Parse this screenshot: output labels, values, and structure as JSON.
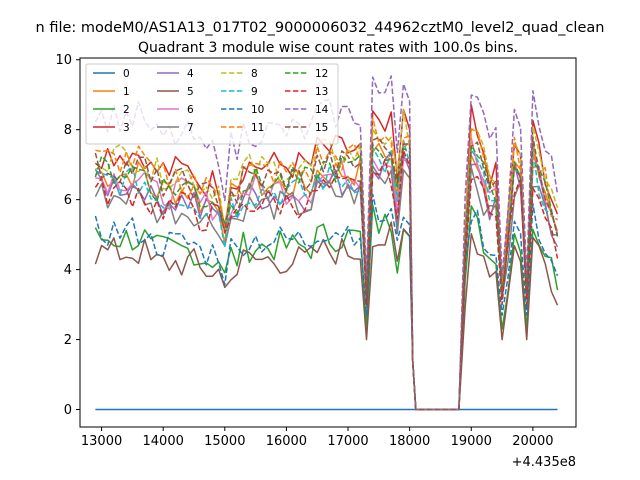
{
  "figure": {
    "suptitle": "n file: modeM0/AS1A13_017T02_9000006032_44962cztM0_level2_quad_clean",
    "title": "Quadrant 3 module wise count rates with 100.0s bins."
  },
  "chart_data": {
    "type": "line",
    "title": "Quadrant 3 module wise count rates with 100.0s bins.",
    "xlabel": "",
    "ylabel": "",
    "x_offset_label": "+4.435e8",
    "xlim": [
      12650,
      20700
    ],
    "ylim": [
      -0.5,
      10.05
    ],
    "xticks": [
      13000,
      14000,
      15000,
      16000,
      17000,
      18000,
      19000,
      20000
    ],
    "xtick_labels": [
      "13000",
      "14000",
      "15000",
      "16000",
      "17000",
      "18000",
      "19000",
      "20000"
    ],
    "yticks": [
      0,
      2,
      4,
      6,
      8,
      10
    ],
    "ytick_labels": [
      "0",
      "2",
      "4",
      "6",
      "8",
      "10"
    ],
    "grid": false,
    "legend": {
      "placement": "top-left",
      "columns": 4
    },
    "x_range": [
      12900,
      20400
    ],
    "bin_width": 100,
    "gap": [
      18100,
      18800
    ],
    "series": [
      {
        "name": "0",
        "color": "#1f77b4",
        "dashed": false,
        "level": 0.0,
        "dip": 0.0
      },
      {
        "name": "1",
        "color": "#ff7f0e",
        "dashed": false,
        "level": 6.6,
        "dip": 3.5
      },
      {
        "name": "2",
        "color": "#2ca02c",
        "dashed": false,
        "level": 4.8,
        "dip": 2.3
      },
      {
        "name": "3",
        "color": "#d62728",
        "dashed": false,
        "level": 7.2,
        "dip": 3.3
      },
      {
        "name": "4",
        "color": "#9467bd",
        "dashed": false,
        "level": 6.3,
        "dip": 3.4
      },
      {
        "name": "5",
        "color": "#8c564b",
        "dashed": false,
        "level": 4.4,
        "dip": 2.0
      },
      {
        "name": "6",
        "color": "#e377c2",
        "dashed": false,
        "level": 6.5,
        "dip": 3.3
      },
      {
        "name": "7",
        "color": "#7f7f7f",
        "dashed": false,
        "level": 6.0,
        "dip": 3.2
      },
      {
        "name": "8",
        "color": "#bcbd22",
        "dashed": true,
        "level": 7.1,
        "dip": 3.6
      },
      {
        "name": "9",
        "color": "#17becf",
        "dashed": true,
        "level": 6.4,
        "dip": 3.2
      },
      {
        "name": "10",
        "color": "#1f77b4",
        "dashed": true,
        "level": 5.0,
        "dip": 2.7
      },
      {
        "name": "11",
        "color": "#ff7f0e",
        "dashed": true,
        "level": 7.0,
        "dip": 3.5
      },
      {
        "name": "12",
        "color": "#2ca02c",
        "dashed": true,
        "level": 6.7,
        "dip": 3.3
      },
      {
        "name": "13",
        "color": "#d62728",
        "dashed": true,
        "level": 6.1,
        "dip": 3.0
      },
      {
        "name": "14",
        "color": "#9467bd",
        "dashed": true,
        "level": 8.2,
        "dip": 3.8
      },
      {
        "name": "15",
        "color": "#8c564b",
        "dashed": true,
        "level": 6.8,
        "dip": 3.3
      }
    ]
  }
}
